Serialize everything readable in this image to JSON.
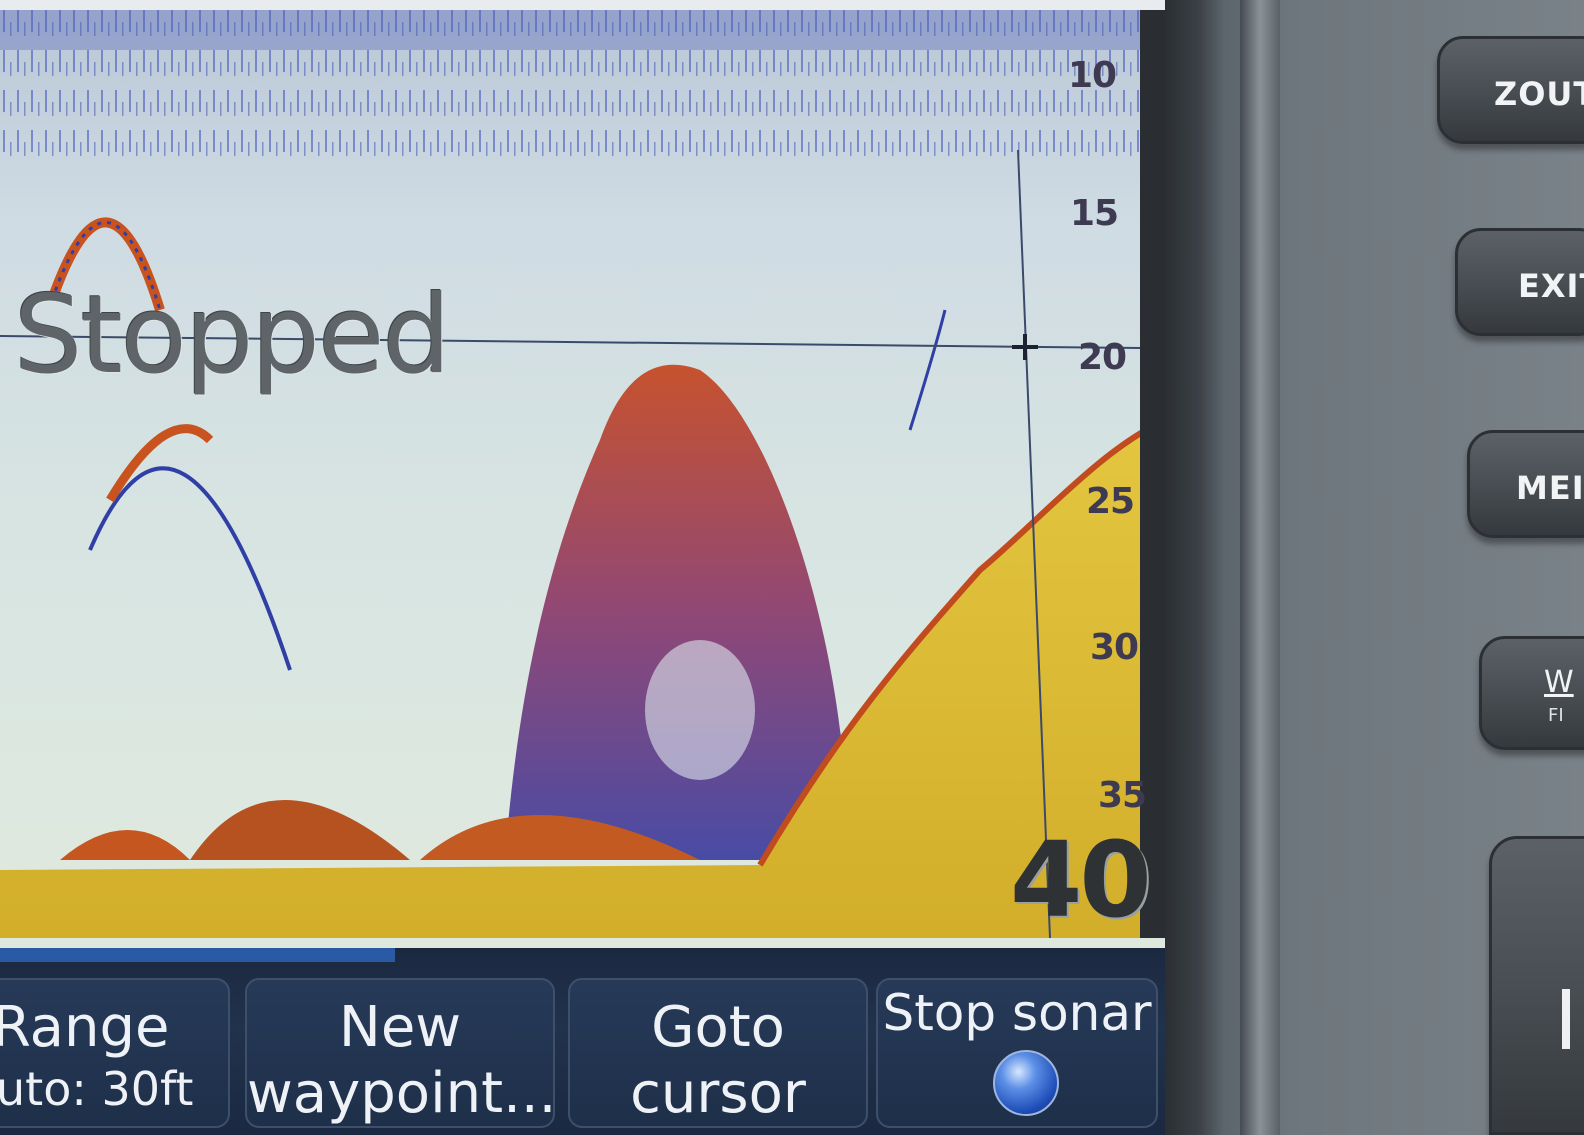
{
  "status": {
    "text": "Stopped"
  },
  "depth_scale": {
    "ticks": [
      "10",
      "15",
      "20",
      "25",
      "30",
      "35"
    ],
    "range_value": "40"
  },
  "softkeys": [
    {
      "title": "Range",
      "subtitle": "uto: 30ft"
    },
    {
      "title": "New",
      "subtitle": "waypoint..."
    },
    {
      "title": "Goto",
      "subtitle": "cursor"
    },
    {
      "title": "Stop sonar",
      "subtitle": ""
    }
  ],
  "hardware_buttons": [
    {
      "label": "ZOUT"
    },
    {
      "label": "EXIT"
    },
    {
      "label": "MEI"
    },
    {
      "label": "W",
      "sublabel": "FI"
    },
    {
      "label": ""
    }
  ],
  "colors": {
    "seabed": "#e2c23c",
    "echo_strong": "#c8531e",
    "echo_weak": "#2f3fa6",
    "water": "#d7e4e2",
    "softkey_bg": "#1e2f49"
  }
}
